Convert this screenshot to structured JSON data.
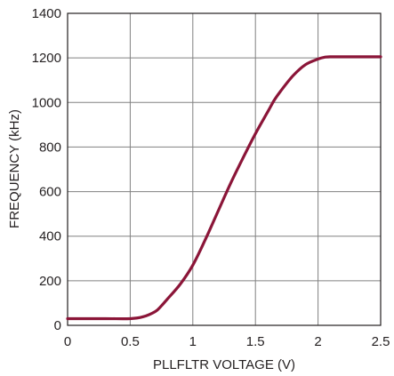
{
  "chart_data": {
    "type": "line",
    "title": "",
    "xlabel": "PLLFLTR VOLTAGE (V)",
    "ylabel": "FREQUENCY (kHz)",
    "xlim": [
      0,
      2.5
    ],
    "ylim": [
      0,
      1400
    ],
    "xticks": [
      0,
      0.5,
      1,
      1.5,
      2,
      2.5
    ],
    "xtick_labels": [
      "0",
      "0.5",
      "1",
      "1.5",
      "2",
      "2.5"
    ],
    "yticks": [
      0,
      200,
      400,
      600,
      800,
      1000,
      1200,
      1400
    ],
    "ytick_labels": [
      "0",
      "200",
      "400",
      "600",
      "800",
      "1000",
      "1200",
      "1400"
    ],
    "grid": true,
    "series": [
      {
        "color": "#8b1538",
        "x": [
          0,
          0.3,
          0.5,
          0.6,
          0.7,
          0.75,
          0.8,
          0.9,
          1.0,
          1.1,
          1.2,
          1.3,
          1.4,
          1.5,
          1.6,
          1.65,
          1.7,
          1.8,
          1.9,
          2.0,
          2.05,
          2.1,
          2.2,
          2.3,
          2.4,
          2.5
        ],
        "y": [
          30,
          30,
          30,
          38,
          62,
          88,
          120,
          185,
          270,
          385,
          510,
          635,
          750,
          860,
          960,
          1010,
          1050,
          1120,
          1170,
          1195,
          1203,
          1205,
          1205,
          1205,
          1205,
          1205
        ]
      }
    ]
  }
}
